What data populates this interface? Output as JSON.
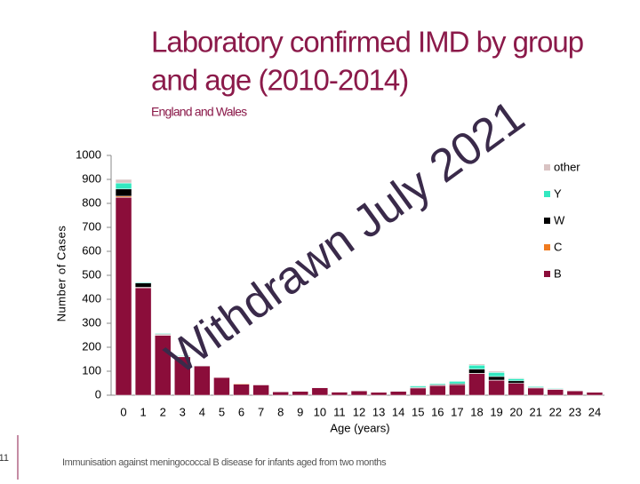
{
  "chart_data": {
    "type": "bar",
    "stacked": true,
    "title_lines": [
      "Laboratory confirmed IMD by group",
      "and age (2010-2014)"
    ],
    "subtitle": "England and Wales",
    "y_label": "Number of Cases",
    "x_label": "Age (years)",
    "categories": [
      "0",
      "1",
      "2",
      "3",
      "4",
      "5",
      "6",
      "7",
      "8",
      "9",
      "10",
      "11",
      "12",
      "13",
      "14",
      "15",
      "16",
      "17",
      "18",
      "19",
      "20",
      "21",
      "22",
      "23",
      "24"
    ],
    "series": [
      {
        "name": "B",
        "color": "#8b0d3a",
        "values": [
          825,
          448,
          250,
          160,
          122,
          74,
          46,
          43,
          14,
          16,
          31,
          13,
          18,
          12,
          16,
          30,
          40,
          44,
          90,
          62,
          50,
          30,
          24,
          18,
          12
        ]
      },
      {
        "name": "C",
        "color": "#f07b20",
        "values": [
          5,
          2,
          2,
          1,
          0,
          1,
          3,
          0,
          0,
          0,
          0,
          0,
          0,
          0,
          0,
          0,
          0,
          0,
          1,
          1,
          0,
          0,
          0,
          0,
          0
        ]
      },
      {
        "name": "W",
        "color": "#000000",
        "values": [
          30,
          18,
          3,
          2,
          1,
          1,
          1,
          0,
          0,
          1,
          1,
          0,
          1,
          0,
          1,
          3,
          3,
          4,
          18,
          15,
          10,
          3,
          2,
          1,
          1
        ]
      },
      {
        "name": "Y",
        "color": "#33e8c0",
        "values": [
          25,
          4,
          3,
          3,
          2,
          1,
          1,
          1,
          1,
          1,
          1,
          1,
          2,
          1,
          2,
          6,
          5,
          10,
          16,
          17,
          9,
          4,
          3,
          2,
          1
        ]
      },
      {
        "name": "other",
        "color": "#d9c3c3",
        "values": [
          15,
          2,
          2,
          1,
          1,
          1,
          1,
          0,
          0,
          0,
          0,
          1,
          1,
          1,
          1,
          2,
          2,
          2,
          5,
          5,
          3,
          1,
          1,
          1,
          1
        ]
      }
    ],
    "ylim": [
      0,
      1000
    ],
    "yticks": [
      0,
      100,
      200,
      300,
      400,
      500,
      600,
      700,
      800,
      900,
      1000
    ],
    "grid": false,
    "legend_position": "right",
    "watermark": "Withdrawn July 2021"
  },
  "footer": {
    "page_number": "11",
    "text": "Immunisation against meningococcal B disease for infants aged from two months"
  }
}
